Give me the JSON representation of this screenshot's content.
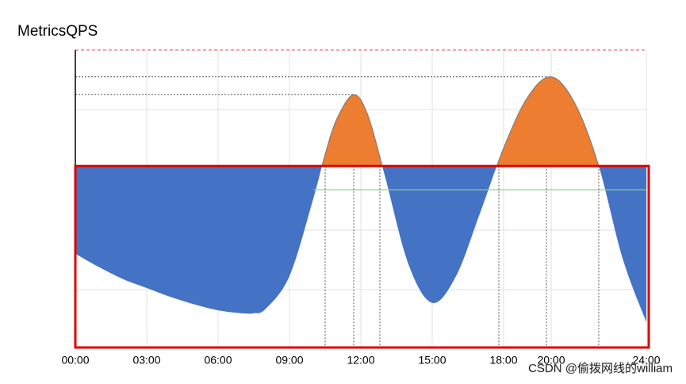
{
  "chart_data": {
    "type": "area",
    "title": "MetricsQPS",
    "series": [
      {
        "color": "#4472c4",
        "color_above": "#ed7d31",
        "x": [
          0,
          1,
          2,
          3,
          4,
          5,
          6,
          7,
          7.5,
          8,
          9,
          10,
          10.5,
          11,
          11.7,
          12.3,
          13,
          14,
          15,
          16,
          17,
          18,
          19,
          20,
          21,
          22,
          23,
          24
        ],
        "values": [
          31.5,
          27,
          23,
          20,
          17,
          14.5,
          12.5,
          11.5,
          11.5,
          13,
          24,
          50,
          65,
          77,
          85,
          78,
          58,
          28,
          15,
          24,
          45,
          67,
          84,
          91,
          82,
          61,
          30,
          8.5
        ]
      }
    ],
    "threshold": 61,
    "max_level": 100,
    "green_level": 53,
    "green_from": 10,
    "peaks": [
      {
        "x": 11.7,
        "value": 85
      },
      {
        "x": 19.8,
        "value": 91
      }
    ],
    "crossings": [
      10.5,
      12.8,
      17.8,
      22
    ],
    "xlim": [
      0,
      24
    ],
    "ylim": [
      0,
      100
    ],
    "xticks": [
      {
        "value": 0,
        "label": "00:00"
      },
      {
        "value": 3,
        "label": "03:00"
      },
      {
        "value": 6,
        "label": "06:00"
      },
      {
        "value": 9,
        "label": "09:00"
      },
      {
        "value": 12,
        "label": "12:00"
      },
      {
        "value": 15,
        "label": "15:00"
      },
      {
        "value": 18,
        "label": "18:00"
      },
      {
        "value": 20,
        "label": "20:00"
      },
      {
        "value": 24,
        "label": "24:00"
      }
    ],
    "grid": true,
    "watermark": "CSDN @偷拨网线的william"
  }
}
